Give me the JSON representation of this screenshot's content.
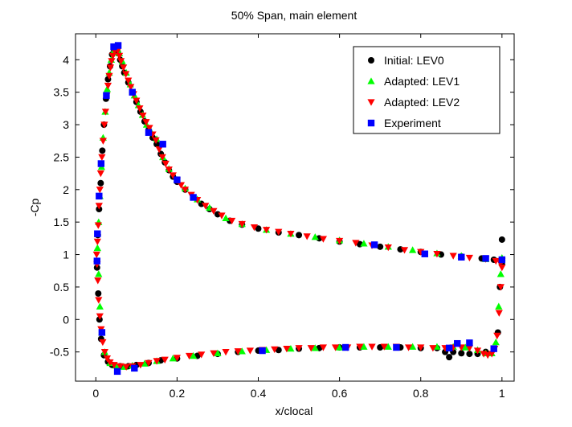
{
  "chart_data": {
    "type": "scatter",
    "title": "50% Span, main element",
    "xlabel": "x/clocal",
    "ylabel": "-Cp",
    "xlim": [
      -0.05,
      1.03
    ],
    "ylim": [
      -0.95,
      4.4
    ],
    "xticks": [
      0,
      0.2,
      0.4,
      0.6,
      0.8,
      1
    ],
    "xtick_labels": [
      "0",
      "0.2",
      "0.4",
      "0.6",
      "0.8",
      "1"
    ],
    "yticks": [
      -0.5,
      0,
      0.5,
      1,
      1.5,
      2,
      2.5,
      3,
      3.5,
      4
    ],
    "ytick_labels": [
      "-0.5",
      "0",
      "0.5",
      "1",
      "1.5",
      "2",
      "2.5",
      "3",
      "3.5",
      "4"
    ],
    "grid": false,
    "legend_position": "top-right",
    "legend_entries": [
      "Initial: LEV0",
      "Adapted: LEV1",
      "Adapted: LEV2",
      "Experiment"
    ],
    "series": [
      {
        "name": "Initial: LEV0",
        "marker": "circle",
        "color": "#000000",
        "upper": [
          [
            0.003,
            0.9
          ],
          [
            0.005,
            1.3
          ],
          [
            0.008,
            1.7
          ],
          [
            0.012,
            2.1
          ],
          [
            0.016,
            2.6
          ],
          [
            0.02,
            3.0
          ],
          [
            0.025,
            3.4
          ],
          [
            0.03,
            3.7
          ],
          [
            0.035,
            3.9
          ],
          [
            0.04,
            4.08
          ],
          [
            0.045,
            4.15
          ],
          [
            0.05,
            4.15
          ],
          [
            0.055,
            4.1
          ],
          [
            0.06,
            4.0
          ],
          [
            0.065,
            3.9
          ],
          [
            0.07,
            3.8
          ],
          [
            0.08,
            3.65
          ],
          [
            0.09,
            3.5
          ],
          [
            0.1,
            3.35
          ],
          [
            0.11,
            3.2
          ],
          [
            0.12,
            3.05
          ],
          [
            0.13,
            2.92
          ],
          [
            0.14,
            2.8
          ],
          [
            0.15,
            2.7
          ],
          [
            0.16,
            2.55
          ],
          [
            0.17,
            2.42
          ],
          [
            0.18,
            2.3
          ],
          [
            0.19,
            2.2
          ],
          [
            0.2,
            2.12
          ],
          [
            0.22,
            2.0
          ],
          [
            0.24,
            1.88
          ],
          [
            0.26,
            1.78
          ],
          [
            0.28,
            1.7
          ],
          [
            0.3,
            1.62
          ],
          [
            0.33,
            1.52
          ],
          [
            0.36,
            1.46
          ],
          [
            0.4,
            1.4
          ],
          [
            0.45,
            1.34
          ],
          [
            0.5,
            1.3
          ],
          [
            0.55,
            1.25
          ],
          [
            0.6,
            1.2
          ],
          [
            0.65,
            1.16
          ],
          [
            0.7,
            1.12
          ],
          [
            0.75,
            1.08
          ],
          [
            0.8,
            1.04
          ],
          [
            0.85,
            1.0
          ],
          [
            0.9,
            0.97
          ],
          [
            0.95,
            0.94
          ],
          [
            0.98,
            0.92
          ],
          [
            1.0,
            1.23
          ]
        ],
        "lower": [
          [
            0.003,
            0.8
          ],
          [
            0.006,
            0.4
          ],
          [
            0.009,
            0.0
          ],
          [
            0.013,
            -0.3
          ],
          [
            0.02,
            -0.55
          ],
          [
            0.03,
            -0.65
          ],
          [
            0.04,
            -0.7
          ],
          [
            0.06,
            -0.72
          ],
          [
            0.08,
            -0.72
          ],
          [
            0.1,
            -0.7
          ],
          [
            0.13,
            -0.67
          ],
          [
            0.16,
            -0.63
          ],
          [
            0.2,
            -0.6
          ],
          [
            0.25,
            -0.56
          ],
          [
            0.3,
            -0.53
          ],
          [
            0.35,
            -0.5
          ],
          [
            0.4,
            -0.48
          ],
          [
            0.45,
            -0.47
          ],
          [
            0.5,
            -0.45
          ],
          [
            0.55,
            -0.44
          ],
          [
            0.6,
            -0.43
          ],
          [
            0.65,
            -0.43
          ],
          [
            0.7,
            -0.43
          ],
          [
            0.75,
            -0.43
          ],
          [
            0.8,
            -0.44
          ],
          [
            0.84,
            -0.44
          ],
          [
            0.86,
            -0.5
          ],
          [
            0.87,
            -0.58
          ],
          [
            0.88,
            -0.5
          ],
          [
            0.9,
            -0.52
          ],
          [
            0.92,
            -0.53
          ],
          [
            0.94,
            -0.53
          ],
          [
            0.96,
            -0.5
          ],
          [
            0.98,
            -0.45
          ],
          [
            0.99,
            -0.2
          ],
          [
            0.995,
            0.5
          ],
          [
            1.0,
            0.85
          ]
        ]
      },
      {
        "name": "Adapted: LEV1",
        "marker": "triangle-up",
        "color": "#00ff00",
        "upper": [
          [
            0.004,
            1.1
          ],
          [
            0.007,
            1.5
          ],
          [
            0.01,
            1.9
          ],
          [
            0.014,
            2.35
          ],
          [
            0.018,
            2.8
          ],
          [
            0.023,
            3.2
          ],
          [
            0.028,
            3.55
          ],
          [
            0.033,
            3.8
          ],
          [
            0.038,
            4.0
          ],
          [
            0.043,
            4.12
          ],
          [
            0.048,
            4.2
          ],
          [
            0.053,
            4.18
          ],
          [
            0.058,
            4.1
          ],
          [
            0.065,
            3.98
          ],
          [
            0.075,
            3.8
          ],
          [
            0.085,
            3.62
          ],
          [
            0.095,
            3.45
          ],
          [
            0.105,
            3.3
          ],
          [
            0.115,
            3.15
          ],
          [
            0.125,
            3.0
          ],
          [
            0.135,
            2.9
          ],
          [
            0.15,
            2.78
          ],
          [
            0.165,
            2.5
          ],
          [
            0.18,
            2.32
          ],
          [
            0.2,
            2.15
          ],
          [
            0.22,
            2.02
          ],
          [
            0.25,
            1.85
          ],
          [
            0.28,
            1.72
          ],
          [
            0.32,
            1.56
          ],
          [
            0.36,
            1.47
          ],
          [
            0.42,
            1.38
          ],
          [
            0.48,
            1.32
          ],
          [
            0.54,
            1.27
          ],
          [
            0.6,
            1.22
          ],
          [
            0.66,
            1.17
          ],
          [
            0.72,
            1.12
          ],
          [
            0.78,
            1.07
          ],
          [
            0.84,
            1.02
          ],
          [
            0.9,
            0.98
          ],
          [
            0.96,
            0.93
          ],
          [
            1.0,
            0.95
          ]
        ],
        "lower": [
          [
            0.004,
            1.1
          ],
          [
            0.007,
            0.7
          ],
          [
            0.01,
            0.2
          ],
          [
            0.015,
            -0.2
          ],
          [
            0.022,
            -0.5
          ],
          [
            0.035,
            -0.67
          ],
          [
            0.05,
            -0.71
          ],
          [
            0.07,
            -0.73
          ],
          [
            0.09,
            -0.71
          ],
          [
            0.12,
            -0.68
          ],
          [
            0.15,
            -0.64
          ],
          [
            0.19,
            -0.6
          ],
          [
            0.24,
            -0.56
          ],
          [
            0.3,
            -0.52
          ],
          [
            0.36,
            -0.49
          ],
          [
            0.42,
            -0.47
          ],
          [
            0.48,
            -0.45
          ],
          [
            0.54,
            -0.44
          ],
          [
            0.6,
            -0.43
          ],
          [
            0.66,
            -0.42
          ],
          [
            0.72,
            -0.42
          ],
          [
            0.78,
            -0.42
          ],
          [
            0.84,
            -0.42
          ],
          [
            0.88,
            -0.42
          ],
          [
            0.91,
            -0.43
          ],
          [
            0.94,
            -0.47
          ],
          [
            0.96,
            -0.52
          ],
          [
            0.975,
            -0.52
          ],
          [
            0.985,
            -0.35
          ],
          [
            0.992,
            0.2
          ],
          [
            0.997,
            0.7
          ]
        ]
      },
      {
        "name": "Adapted: LEV2",
        "marker": "triangle-down",
        "color": "#ff0000",
        "upper": [
          [
            0.002,
            1.0
          ],
          [
            0.004,
            1.2
          ],
          [
            0.006,
            1.45
          ],
          [
            0.008,
            1.75
          ],
          [
            0.01,
            2.0
          ],
          [
            0.012,
            2.25
          ],
          [
            0.015,
            2.5
          ],
          [
            0.018,
            2.75
          ],
          [
            0.021,
            3.0
          ],
          [
            0.024,
            3.2
          ],
          [
            0.027,
            3.45
          ],
          [
            0.03,
            3.6
          ],
          [
            0.033,
            3.75
          ],
          [
            0.036,
            3.88
          ],
          [
            0.039,
            3.98
          ],
          [
            0.042,
            4.06
          ],
          [
            0.046,
            4.14
          ],
          [
            0.05,
            4.18
          ],
          [
            0.054,
            4.14
          ],
          [
            0.058,
            4.06
          ],
          [
            0.062,
            3.98
          ],
          [
            0.068,
            3.88
          ],
          [
            0.074,
            3.78
          ],
          [
            0.08,
            3.68
          ],
          [
            0.086,
            3.58
          ],
          [
            0.093,
            3.47
          ],
          [
            0.1,
            3.37
          ],
          [
            0.108,
            3.25
          ],
          [
            0.116,
            3.14
          ],
          [
            0.124,
            3.04
          ],
          [
            0.132,
            2.95
          ],
          [
            0.14,
            2.85
          ],
          [
            0.148,
            2.76
          ],
          [
            0.156,
            2.62
          ],
          [
            0.164,
            2.5
          ],
          [
            0.172,
            2.4
          ],
          [
            0.18,
            2.31
          ],
          [
            0.19,
            2.22
          ],
          [
            0.2,
            2.14
          ],
          [
            0.21,
            2.07
          ],
          [
            0.22,
            2.0
          ],
          [
            0.235,
            1.92
          ],
          [
            0.25,
            1.84
          ],
          [
            0.27,
            1.75
          ],
          [
            0.29,
            1.67
          ],
          [
            0.31,
            1.6
          ],
          [
            0.335,
            1.52
          ],
          [
            0.36,
            1.47
          ],
          [
            0.39,
            1.42
          ],
          [
            0.42,
            1.38
          ],
          [
            0.45,
            1.35
          ],
          [
            0.48,
            1.32
          ],
          [
            0.52,
            1.28
          ],
          [
            0.56,
            1.24
          ],
          [
            0.6,
            1.21
          ],
          [
            0.64,
            1.18
          ],
          [
            0.68,
            1.14
          ],
          [
            0.72,
            1.11
          ],
          [
            0.76,
            1.07
          ],
          [
            0.8,
            1.04
          ],
          [
            0.84,
            1.01
          ],
          [
            0.88,
            0.98
          ],
          [
            0.92,
            0.95
          ],
          [
            0.96,
            0.93
          ],
          [
            0.985,
            0.9
          ],
          [
            0.995,
            0.88
          ],
          [
            1.0,
            0.9
          ]
        ],
        "lower": [
          [
            0.003,
            0.85
          ],
          [
            0.005,
            0.6
          ],
          [
            0.007,
            0.3
          ],
          [
            0.01,
            0.05
          ],
          [
            0.013,
            -0.15
          ],
          [
            0.017,
            -0.35
          ],
          [
            0.022,
            -0.5
          ],
          [
            0.028,
            -0.6
          ],
          [
            0.035,
            -0.66
          ],
          [
            0.045,
            -0.7
          ],
          [
            0.06,
            -0.72
          ],
          [
            0.075,
            -0.73
          ],
          [
            0.09,
            -0.72
          ],
          [
            0.11,
            -0.7
          ],
          [
            0.13,
            -0.67
          ],
          [
            0.15,
            -0.64
          ],
          [
            0.17,
            -0.62
          ],
          [
            0.2,
            -0.59
          ],
          [
            0.23,
            -0.56
          ],
          [
            0.26,
            -0.54
          ],
          [
            0.29,
            -0.52
          ],
          [
            0.32,
            -0.5
          ],
          [
            0.35,
            -0.49
          ],
          [
            0.38,
            -0.48
          ],
          [
            0.41,
            -0.47
          ],
          [
            0.44,
            -0.46
          ],
          [
            0.47,
            -0.45
          ],
          [
            0.5,
            -0.44
          ],
          [
            0.53,
            -0.44
          ],
          [
            0.56,
            -0.43
          ],
          [
            0.59,
            -0.43
          ],
          [
            0.62,
            -0.43
          ],
          [
            0.65,
            -0.42
          ],
          [
            0.68,
            -0.42
          ],
          [
            0.71,
            -0.42
          ],
          [
            0.74,
            -0.42
          ],
          [
            0.77,
            -0.43
          ],
          [
            0.8,
            -0.43
          ],
          [
            0.83,
            -0.44
          ],
          [
            0.86,
            -0.44
          ],
          [
            0.88,
            -0.43
          ],
          [
            0.9,
            -0.43
          ],
          [
            0.92,
            -0.44
          ],
          [
            0.94,
            -0.48
          ],
          [
            0.955,
            -0.53
          ],
          [
            0.965,
            -0.55
          ],
          [
            0.975,
            -0.53
          ],
          [
            0.982,
            -0.45
          ],
          [
            0.988,
            -0.25
          ],
          [
            0.993,
            0.1
          ],
          [
            0.997,
            0.5
          ],
          [
            1.0,
            0.8
          ]
        ]
      },
      {
        "name": "Experiment",
        "marker": "square",
        "color": "#0000ff",
        "upper": [
          [
            0.003,
            0.9
          ],
          [
            0.004,
            1.32
          ],
          [
            0.008,
            1.9
          ],
          [
            0.013,
            2.4
          ],
          [
            0.026,
            3.45
          ],
          [
            0.044,
            4.2
          ],
          [
            0.055,
            4.22
          ],
          [
            0.09,
            3.5
          ],
          [
            0.13,
            2.88
          ],
          [
            0.165,
            2.7
          ],
          [
            0.2,
            2.15
          ],
          [
            0.24,
            1.88
          ],
          [
            0.686,
            1.15
          ],
          [
            0.81,
            1.01
          ],
          [
            0.9,
            0.96
          ],
          [
            0.96,
            0.94
          ],
          [
            1.0,
            0.92
          ]
        ],
        "lower": [
          [
            0.015,
            -0.2
          ],
          [
            0.053,
            -0.8
          ],
          [
            0.095,
            -0.75
          ],
          [
            0.41,
            -0.48
          ],
          [
            0.615,
            -0.43
          ],
          [
            0.74,
            -0.43
          ],
          [
            0.87,
            -0.44
          ],
          [
            0.89,
            -0.37
          ],
          [
            0.92,
            -0.36
          ],
          [
            0.98,
            -0.45
          ]
        ]
      }
    ]
  }
}
